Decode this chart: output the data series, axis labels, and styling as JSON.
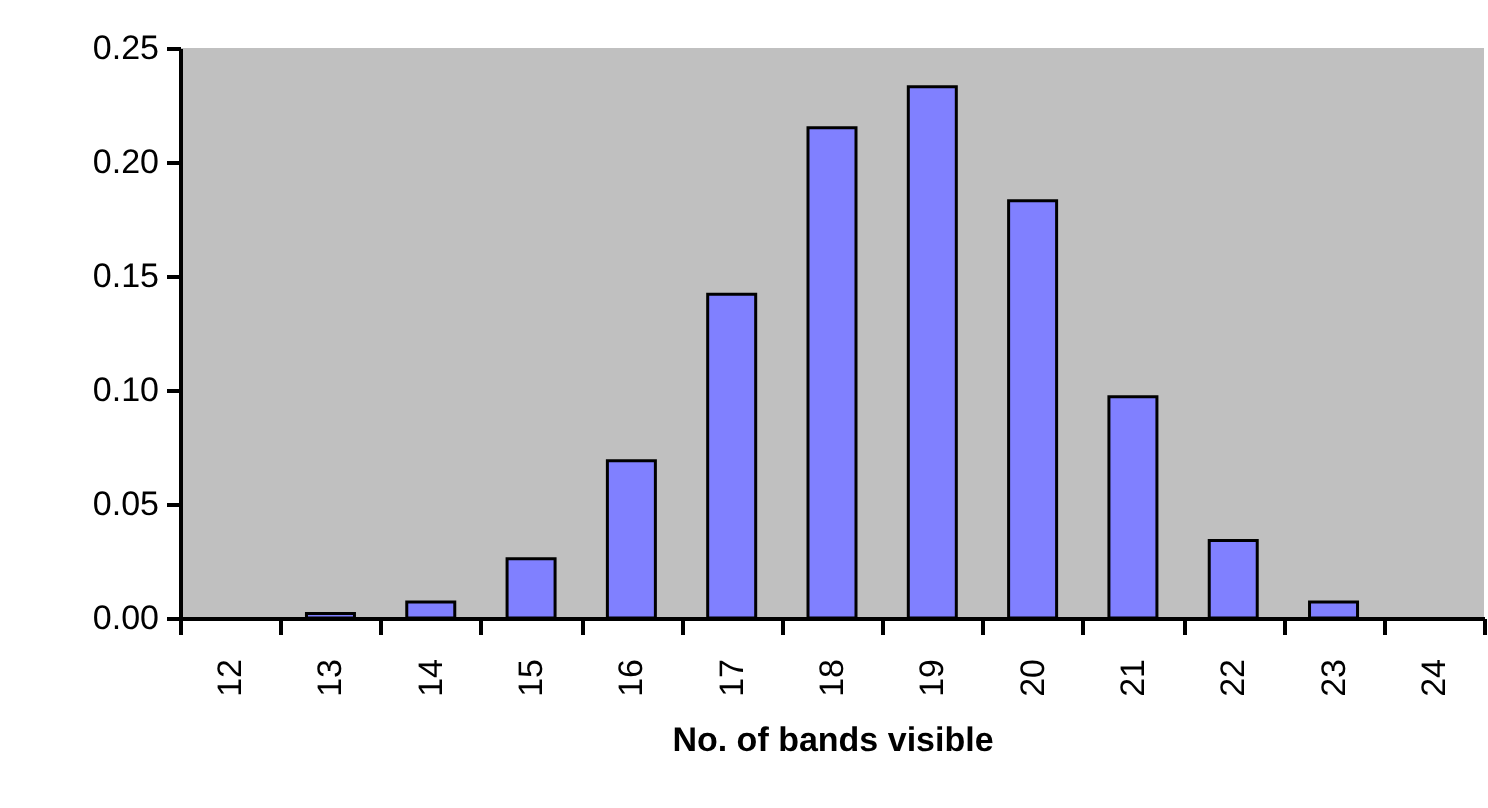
{
  "chart_data": {
    "type": "bar",
    "xlabel": "No. of bands visible",
    "categories": [
      "12",
      "13",
      "14",
      "15",
      "16",
      "17",
      "18",
      "19",
      "20",
      "21",
      "22",
      "23",
      "24"
    ],
    "values": [
      0,
      0.002,
      0.007,
      0.026,
      0.069,
      0.142,
      0.215,
      0.233,
      0.183,
      0.097,
      0.034,
      0.007,
      0
    ],
    "color": "#8080ff",
    "ylim": [
      0,
      0.25
    ],
    "yticks": [
      {
        "value": 0,
        "label": "0.00"
      },
      {
        "value": 0.05,
        "label": "0.05"
      },
      {
        "value": 0.1,
        "label": "0.10"
      },
      {
        "value": 0.15,
        "label": "0.15"
      },
      {
        "value": 0.2,
        "label": "0.20"
      },
      {
        "value": 0.25,
        "label": "0.25"
      }
    ],
    "grid": false
  }
}
